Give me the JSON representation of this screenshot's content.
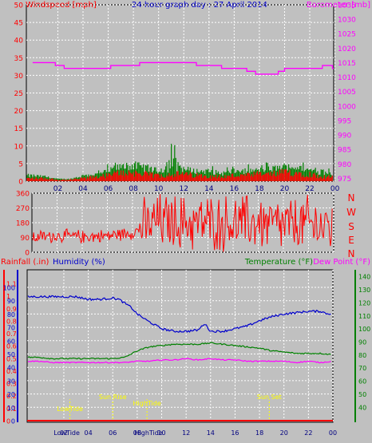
{
  "title": "24 hour graph day : 27 April 2014",
  "colors": {
    "background": "#c0c0c0",
    "grid": "#ffffff",
    "wind_axis": "#ff0000",
    "barometer_axis": "#ff00ff",
    "wind_bars": "#ff0000",
    "gust_bars": "#008000",
    "direction_line": "#ff0000",
    "rain_axis": "#ff0000",
    "humidity_axis": "#0000cc",
    "temperature_axis": "#008000",
    "dewpoint": "#ff00ff",
    "annotations": "#ffff00"
  },
  "panels": {
    "wind": {
      "left_label": "Windspeed [mph]",
      "right_label": "Barometer [mb]"
    },
    "direction": {
      "compass": [
        "N",
        "W",
        "S",
        "E",
        "N"
      ]
    },
    "lower": {
      "rain_label": "Rainfall (.in)",
      "humidity_label": "Humidity (%)",
      "temperature_label": "Temperature (°F)",
      "dewpoint_label": "Dew Point (°F)"
    }
  },
  "annotations": [
    {
      "label": "LowTide",
      "hour": 2.5
    },
    {
      "label": "Sun Rise",
      "hour": 6.0
    },
    {
      "label": "HighTide",
      "hour": 8.8
    },
    {
      "label": "Sun Set",
      "hour": 18.8
    }
  ],
  "chart_data": [
    {
      "type": "bar",
      "panel": "wind",
      "x_ticks": [
        "02",
        "04",
        "06",
        "08",
        "10",
        "12",
        "14",
        "16",
        "18",
        "20",
        "22",
        "00"
      ],
      "y_left": {
        "label": "Windspeed [mph]",
        "ticks": [
          0,
          5,
          10,
          15,
          20,
          25,
          30,
          35,
          40,
          45,
          50
        ],
        "range": [
          0,
          50
        ]
      },
      "y_right": {
        "label": "Barometer [mb]",
        "ticks": [
          975,
          980,
          985,
          990,
          995,
          1000,
          1005,
          1010,
          1015,
          1020,
          1025,
          1030,
          1035
        ],
        "range": [
          974,
          1035
        ]
      },
      "series": [
        {
          "name": "Barometer [mb]",
          "kind": "line",
          "axis": "right",
          "x": [
            0,
            0.8,
            1.8,
            2.5,
            6,
            6.2,
            8.2,
            8.5,
            12.5,
            13,
            14,
            15,
            16.5,
            17,
            17.7,
            19.5,
            20,
            23,
            23.8
          ],
          "values": [
            1015,
            1015,
            1014,
            1013,
            1013,
            1014,
            1014,
            1015,
            1015,
            1014,
            1014,
            1013,
            1013,
            1012,
            1011,
            1012,
            1013,
            1014,
            1013
          ]
        },
        {
          "kind": "bars",
          "axis": "left",
          "description_hours": "hourly mean speed",
          "x": [
            0,
            1,
            2,
            3,
            4,
            5,
            6,
            7,
            8,
            9,
            10,
            11,
            12,
            13,
            14,
            15,
            16,
            17,
            18,
            19,
            20,
            21,
            22,
            23
          ],
          "values": [
            1,
            1,
            0.5,
            0.5,
            1,
            1.5,
            2,
            3,
            3,
            2.5,
            2,
            2.5,
            2.5,
            2,
            2,
            1.5,
            2,
            2,
            2.5,
            2.5,
            3,
            3,
            2.5,
            1.5
          ]
        },
        {
          "kind": "bars",
          "axis": "left",
          "description_hours": "hourly peak gust",
          "x": [
            0,
            1,
            2,
            3,
            4,
            5,
            6,
            7,
            8,
            9,
            10,
            11,
            12,
            13,
            14,
            15,
            16,
            17,
            18,
            19,
            20,
            21,
            22,
            23
          ],
          "values": [
            3,
            2,
            1,
            1,
            3,
            3,
            5,
            7,
            8,
            7,
            5,
            13,
            6,
            5,
            5,
            4,
            5,
            5,
            5,
            6,
            7,
            6,
            5,
            6
          ]
        }
      ]
    },
    {
      "type": "line",
      "panel": "direction",
      "x_ticks": [
        "02",
        "04",
        "06",
        "08",
        "10",
        "12",
        "14",
        "16",
        "18",
        "20",
        "22",
        "00"
      ],
      "y": {
        "ticks": [
          0,
          90,
          180,
          270,
          360
        ],
        "range": [
          0,
          360
        ]
      },
      "series": [
        {
          "kind": "line",
          "description_hours": "typical direction",
          "x": [
            0,
            2,
            4,
            6,
            8,
            10,
            12,
            14,
            16,
            18,
            20,
            22,
            24
          ],
          "values": [
            90,
            100,
            95,
            100,
            120,
            190,
            180,
            180,
            175,
            180,
            160,
            170,
            150
          ]
        }
      ]
    },
    {
      "type": "line",
      "panel": "lower",
      "x_ticks": [
        "02",
        "04",
        "06",
        "08",
        "10",
        "12",
        "14",
        "16",
        "18",
        "20",
        "22",
        "00"
      ],
      "y_rain": {
        "label": "Rainfall (.in)",
        "ticks": [
          0,
          0.1,
          0.2,
          0.3,
          0.4,
          0.5,
          0.6,
          0.7,
          0.8,
          0.9,
          1,
          1.1
        ],
        "range": [
          0,
          1.1
        ]
      },
      "y_humidity": {
        "label": "Humidity (%)",
        "ticks": [
          0,
          10,
          20,
          30,
          40,
          50,
          60,
          70,
          80,
          90,
          100
        ],
        "range": [
          0,
          100
        ]
      },
      "y_temperature": {
        "label": "Temperature (°F)",
        "ticks": [
          40,
          50,
          60,
          70,
          80,
          90,
          100,
          110,
          120,
          130,
          140
        ],
        "range": [
          29.5,
          145
        ]
      },
      "series": [
        {
          "name": "Humidity (%)",
          "axis": "humidity",
          "x": [
            0,
            1,
            2,
            3,
            4,
            5,
            6,
            6.5,
            7,
            7.5,
            8,
            9,
            10,
            11,
            12,
            13,
            13.5,
            14,
            15,
            16,
            17,
            17.5,
            18,
            19,
            20,
            21,
            22,
            23,
            23.6,
            24
          ],
          "values": [
            93,
            93,
            93,
            93,
            91,
            91,
            92,
            91,
            88,
            85,
            80,
            74,
            69,
            67,
            67,
            68,
            73,
            67,
            67,
            69,
            71,
            73,
            75,
            78,
            80,
            81,
            82,
            82,
            80,
            81
          ]
        },
        {
          "name": "Temperature (°F)",
          "axis": "temperature",
          "x": [
            0,
            1,
            2,
            3,
            4,
            5,
            6,
            7,
            8,
            9,
            10,
            11,
            12,
            13,
            14,
            15,
            16,
            17,
            18,
            19,
            20,
            21,
            22,
            23,
            24
          ],
          "values": [
            78,
            77,
            77,
            77,
            77,
            77,
            77,
            78,
            83,
            86,
            87,
            88,
            88,
            88,
            89,
            88,
            87,
            86,
            85,
            83,
            82,
            81,
            81,
            81,
            80
          ]
        },
        {
          "name": "Dew Point (°F)",
          "axis": "temperature",
          "x": [
            0,
            1,
            2,
            3,
            4,
            5,
            6,
            7,
            8,
            9,
            10,
            11,
            12,
            13,
            14,
            15,
            16,
            17,
            18,
            19,
            20,
            21,
            22,
            23,
            24
          ],
          "values": [
            75,
            74,
            74,
            74,
            74,
            74,
            74,
            74,
            75,
            75,
            76,
            76,
            77,
            76,
            77,
            76,
            76,
            75,
            75,
            75,
            75,
            74,
            75,
            74,
            75
          ]
        },
        {
          "name": "Rainfall (.in)",
          "axis": "rain",
          "x": [
            0,
            24
          ],
          "values": [
            0,
            0
          ]
        }
      ]
    }
  ]
}
